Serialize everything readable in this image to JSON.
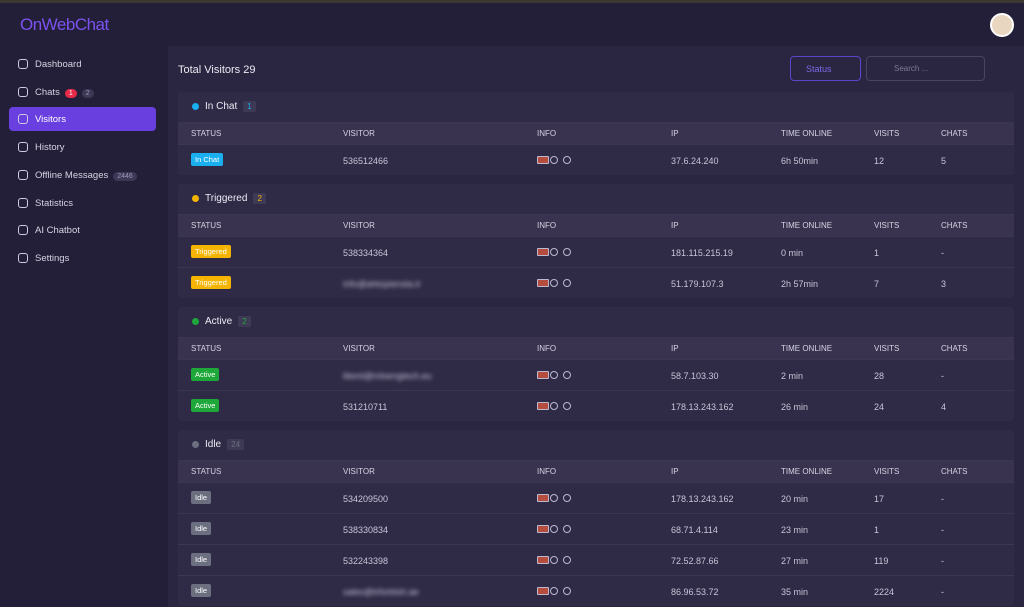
{
  "brand": "OnWebChat",
  "nav": [
    {
      "label": "Dashboard"
    },
    {
      "label": "Chats",
      "badges": [
        "1",
        "2"
      ]
    },
    {
      "label": "Visitors"
    },
    {
      "label": "History"
    },
    {
      "label": "Offline Messages",
      "badges": [
        "2446"
      ]
    },
    {
      "label": "Statistics"
    },
    {
      "label": "AI Chatbot"
    },
    {
      "label": "Settings"
    }
  ],
  "header": {
    "title": "Total Visitors 29",
    "status_button": "Status",
    "search_placeholder": "Search ..."
  },
  "columns": [
    "STATUS",
    "VISITOR",
    "INFO",
    "IP",
    "TIME ONLINE",
    "VISITS",
    "CHATS"
  ],
  "sections": [
    {
      "title": "In Chat",
      "count": "1",
      "color": "#1ab0f0",
      "rows": [
        [
          "In Chat",
          "536512466",
          "37.6.24.240",
          "6h 50min",
          "12",
          "5"
        ]
      ]
    },
    {
      "title": "Triggered",
      "count": "2",
      "color": "#f5b400",
      "rows": [
        [
          "Triggered",
          "538334364",
          "181.115.215.19",
          "0 min",
          "1",
          "-"
        ],
        [
          "Triggered",
          "info@ahtopiensta.it",
          "51.179.107.3",
          "2h 57min",
          "7",
          "3"
        ]
      ]
    },
    {
      "title": "Active",
      "count": "2",
      "color": "#1fa83a",
      "rows": [
        [
          "Active",
          "lilemt@mlsengtech.eu",
          "58.7.103.30",
          "2 min",
          "28",
          "-"
        ],
        [
          "Active",
          "531210711",
          "178.13.243.162",
          "26 min",
          "24",
          "4"
        ]
      ]
    },
    {
      "title": "Idle",
      "count": "24",
      "color": "#6b6f80",
      "rows": [
        [
          "Idle",
          "534209500",
          "178.13.243.162",
          "20 min",
          "17",
          "-"
        ],
        [
          "Idle",
          "538330834",
          "68.71.4.114",
          "23 min",
          "1",
          "-"
        ],
        [
          "Idle",
          "532243398",
          "72.52.87.66",
          "27 min",
          "119",
          "-"
        ],
        [
          "Idle",
          "sales@trforbtsh.ae",
          "86.96.53.72",
          "35 min",
          "2224",
          "-"
        ]
      ]
    }
  ]
}
